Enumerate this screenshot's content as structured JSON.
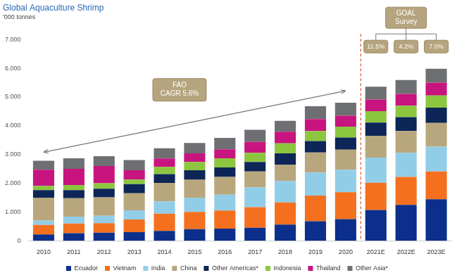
{
  "chart_data": {
    "type": "bar",
    "title": "Global Aquaculture Shrimp",
    "subtitle": "'000 tonnes",
    "categories": [
      "2010",
      "2011",
      "2012",
      "2013",
      "2014",
      "2015",
      "2016",
      "2017",
      "2018",
      "2019",
      "2020",
      "2021E",
      "2022E",
      "2023E"
    ],
    "series": [
      {
        "name": "Ecuador",
        "color": "#0b2f8a",
        "values": [
          220,
          260,
          280,
          300,
          340,
          400,
          420,
          450,
          560,
          680,
          750,
          1070,
          1250,
          1440
        ]
      },
      {
        "name": "Vietnam",
        "color": "#f4701e",
        "values": [
          330,
          340,
          330,
          440,
          600,
          600,
          630,
          720,
          770,
          890,
          940,
          950,
          970,
          970
        ]
      },
      {
        "name": "India",
        "color": "#92cde8",
        "values": [
          150,
          240,
          260,
          320,
          430,
          500,
          550,
          690,
          750,
          800,
          780,
          870,
          840,
          860
        ]
      },
      {
        "name": "China",
        "color": "#b8a77c",
        "values": [
          800,
          640,
          640,
          590,
          640,
          620,
          620,
          550,
          560,
          700,
          700,
          760,
          760,
          830
        ]
      },
      {
        "name": "Other Americas*",
        "color": "#0d2657",
        "values": [
          260,
          280,
          300,
          320,
          310,
          330,
          330,
          330,
          400,
          400,
          420,
          460,
          480,
          530
        ]
      },
      {
        "name": "Indonesia",
        "color": "#8cc63f",
        "values": [
          150,
          180,
          190,
          160,
          250,
          290,
          320,
          320,
          350,
          350,
          380,
          400,
          400,
          420
        ]
      },
      {
        "name": "Thailand",
        "color": "#c8147e",
        "values": [
          560,
          560,
          600,
          320,
          290,
          300,
          310,
          380,
          400,
          410,
          380,
          400,
          410,
          450
        ]
      },
      {
        "name": "Other Asia*",
        "color": "#6e6f72",
        "values": [
          310,
          370,
          340,
          360,
          360,
          360,
          400,
          420,
          380,
          450,
          450,
          450,
          480,
          480
        ]
      }
    ],
    "stacked": true,
    "ylim": [
      0,
      7000
    ],
    "yticks": [
      0,
      {
        "value": 1000,
        "label": "1.000"
      },
      {
        "value": 2000,
        "label": "2.000"
      },
      {
        "value": 3000,
        "label": "3.000"
      },
      {
        "value": 4000,
        "label": "4.000"
      },
      {
        "value": 5000,
        "label": "5.000"
      },
      {
        "value": 6000,
        "label": "6.000"
      },
      {
        "value": 7000,
        "label": "7.000"
      }
    ],
    "grid": false,
    "legend": "bottom",
    "annotations": [
      {
        "text": [
          "FAO",
          "CAGR 5.6%"
        ]
      },
      {
        "text": [
          "GOAL",
          "Survey"
        ]
      },
      {
        "text": [
          "11.5%"
        ]
      },
      {
        "text": [
          "4.2%"
        ]
      },
      {
        "text": [
          "7.0%"
        ]
      }
    ]
  }
}
